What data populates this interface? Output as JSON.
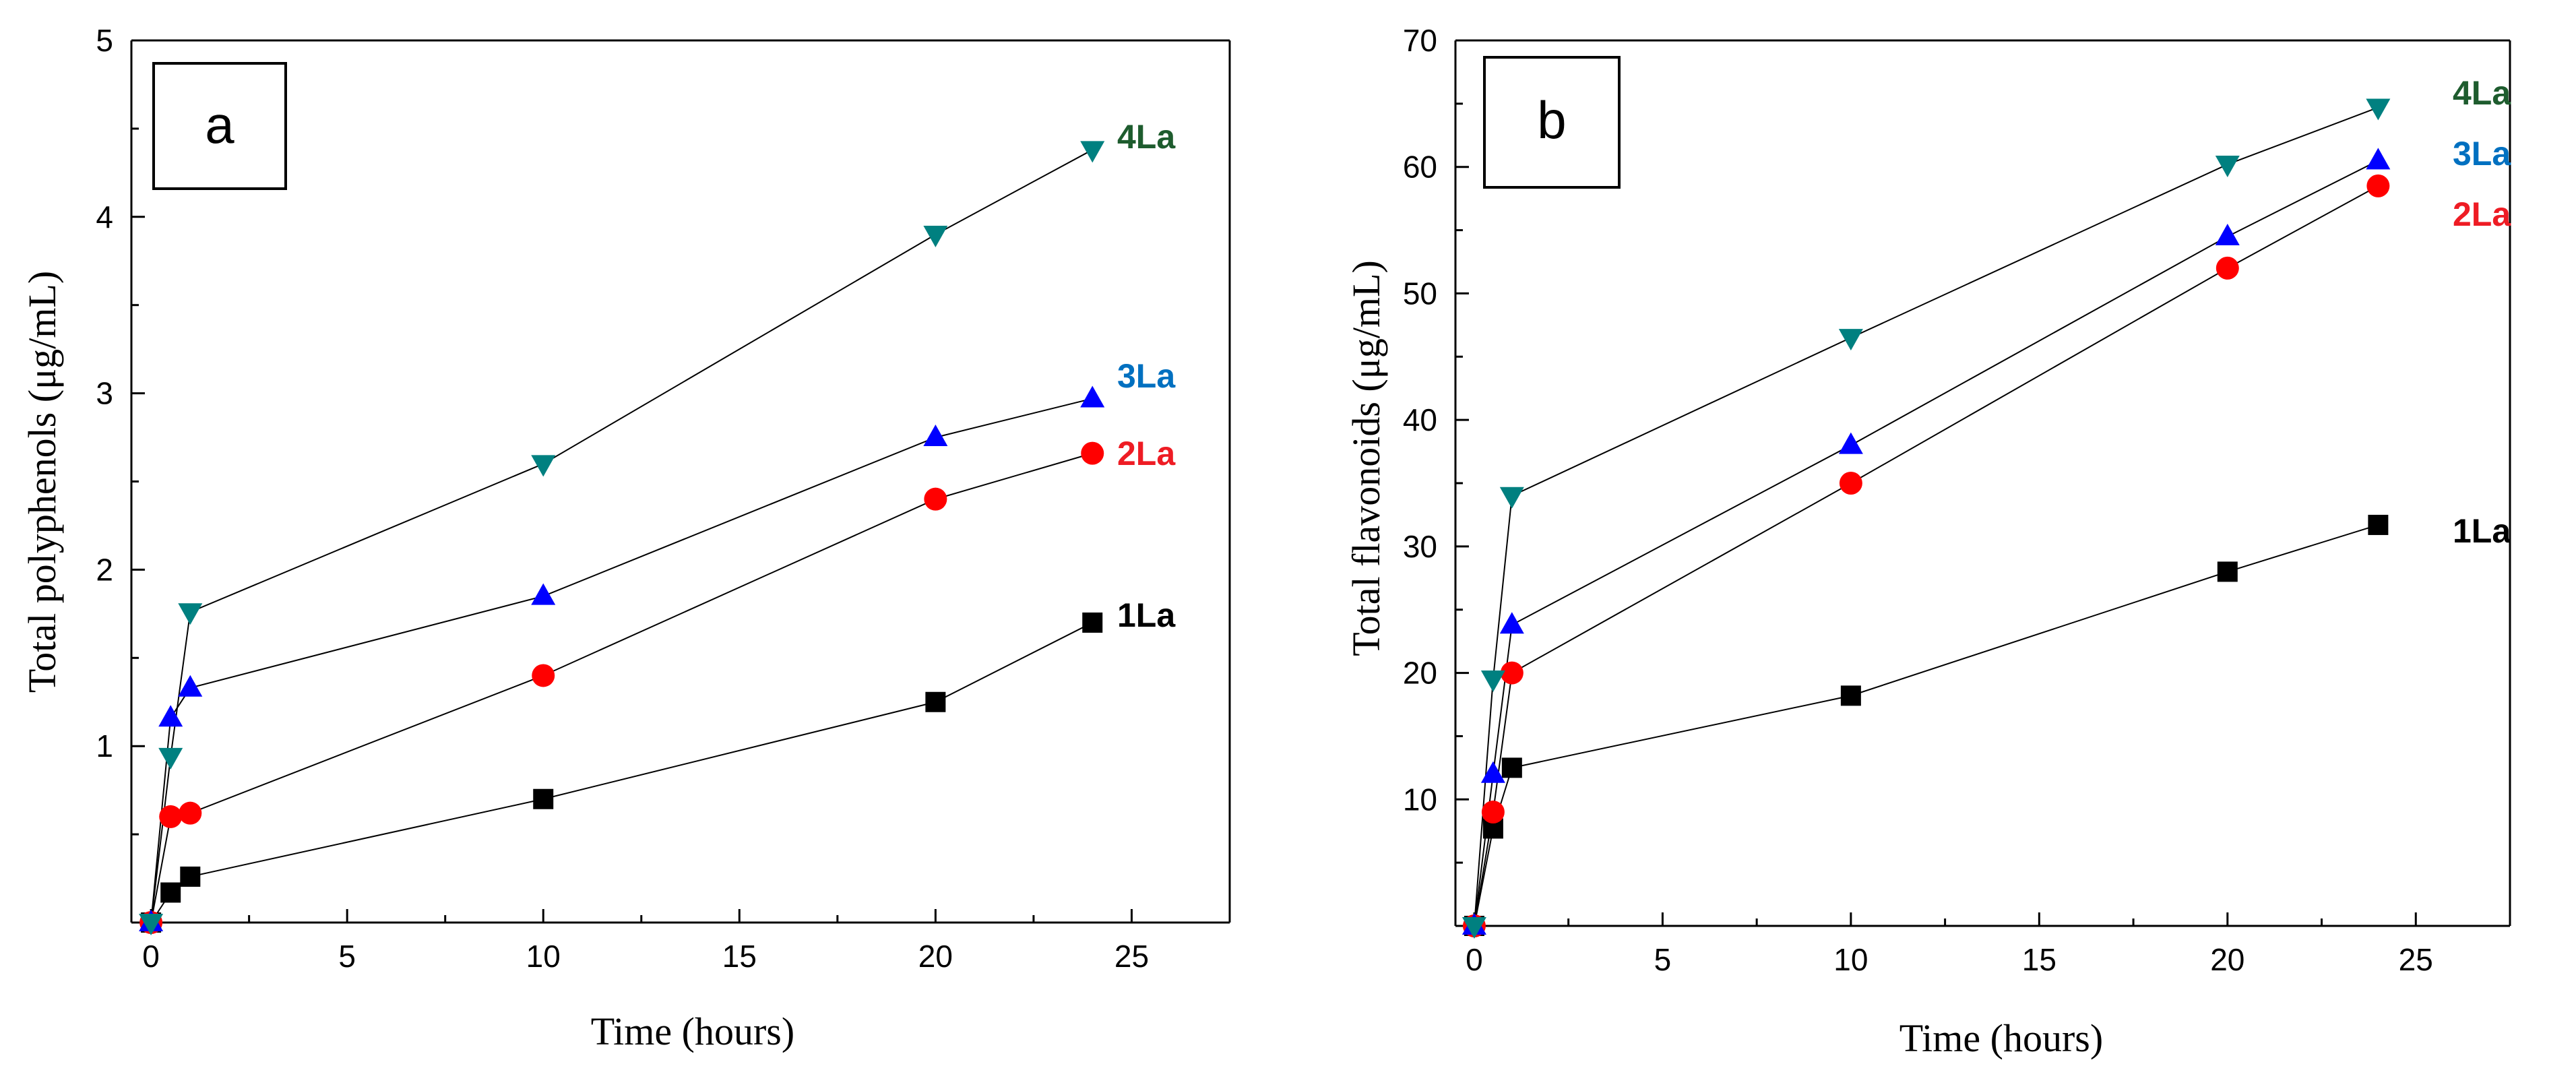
{
  "chart_data": [
    {
      "type": "line",
      "panel_label": "a",
      "xlabel": "Time (hours)",
      "ylabel": "Total polyphenols (μg/mL)",
      "xlim": [
        -0.5,
        27.5
      ],
      "ylim": [
        0,
        5
      ],
      "xticks": [
        0,
        5,
        10,
        15,
        20,
        25
      ],
      "xtick_labels": [
        "0",
        "5",
        "10",
        "15",
        "20",
        "25"
      ],
      "yticks": [
        1,
        2,
        3,
        4,
        5
      ],
      "ytick_labels": [
        "1",
        "2",
        "3",
        "4",
        "5"
      ],
      "x": [
        0,
        0.5,
        1,
        10,
        20,
        24
      ],
      "series": [
        {
          "name": "1La",
          "marker": "square",
          "color": "#000000",
          "label_color": "#000000",
          "values": [
            0,
            0.17,
            0.26,
            0.7,
            1.25,
            1.7
          ]
        },
        {
          "name": "2La",
          "marker": "circle",
          "color": "#ff0000",
          "label_color": "#ee1c24",
          "values": [
            0,
            0.6,
            0.62,
            1.4,
            2.4,
            2.66
          ]
        },
        {
          "name": "3La",
          "marker": "triangle-up",
          "color": "#0000ff",
          "label_color": "#0070c0",
          "values": [
            0,
            1.16,
            1.33,
            1.85,
            2.75,
            2.97
          ]
        },
        {
          "name": "4La",
          "marker": "triangle-down",
          "color": "#008080",
          "label_color": "#1e5c2e",
          "values": [
            0,
            0.94,
            1.76,
            2.6,
            3.9,
            4.38
          ]
        }
      ]
    },
    {
      "type": "line",
      "panel_label": "b",
      "xlabel": "Time (hours)",
      "ylabel": "Total flavonoids (μg/mL)",
      "xlim": [
        -0.5,
        27.5
      ],
      "ylim": [
        0,
        70
      ],
      "xticks": [
        0,
        5,
        10,
        15,
        20,
        25
      ],
      "xtick_labels": [
        "0",
        "5",
        "10",
        "15",
        "20",
        "25"
      ],
      "yticks": [
        10,
        20,
        30,
        40,
        50,
        60,
        70
      ],
      "ytick_labels": [
        "10",
        "20",
        "30",
        "40",
        "50",
        "60",
        "70"
      ],
      "x": [
        0,
        0.5,
        1,
        10,
        20,
        24
      ],
      "series": [
        {
          "name": "1La",
          "marker": "square",
          "color": "#000000",
          "label_color": "#000000",
          "values": [
            0,
            7.7,
            12.5,
            18.2,
            28,
            31.7
          ]
        },
        {
          "name": "2La",
          "marker": "circle",
          "color": "#ff0000",
          "label_color": "#ee1c24",
          "values": [
            0,
            9,
            20,
            35,
            52,
            58.5
          ]
        },
        {
          "name": "3La",
          "marker": "triangle-up",
          "color": "#0000ff",
          "label_color": "#0070c0",
          "values": [
            0,
            12,
            23.8,
            38,
            54.5,
            60.5
          ]
        },
        {
          "name": "4La",
          "marker": "triangle-down",
          "color": "#008080",
          "label_color": "#1e5c2e",
          "values": [
            0,
            19.5,
            34,
            46.5,
            60.2,
            64.7
          ]
        }
      ]
    }
  ]
}
